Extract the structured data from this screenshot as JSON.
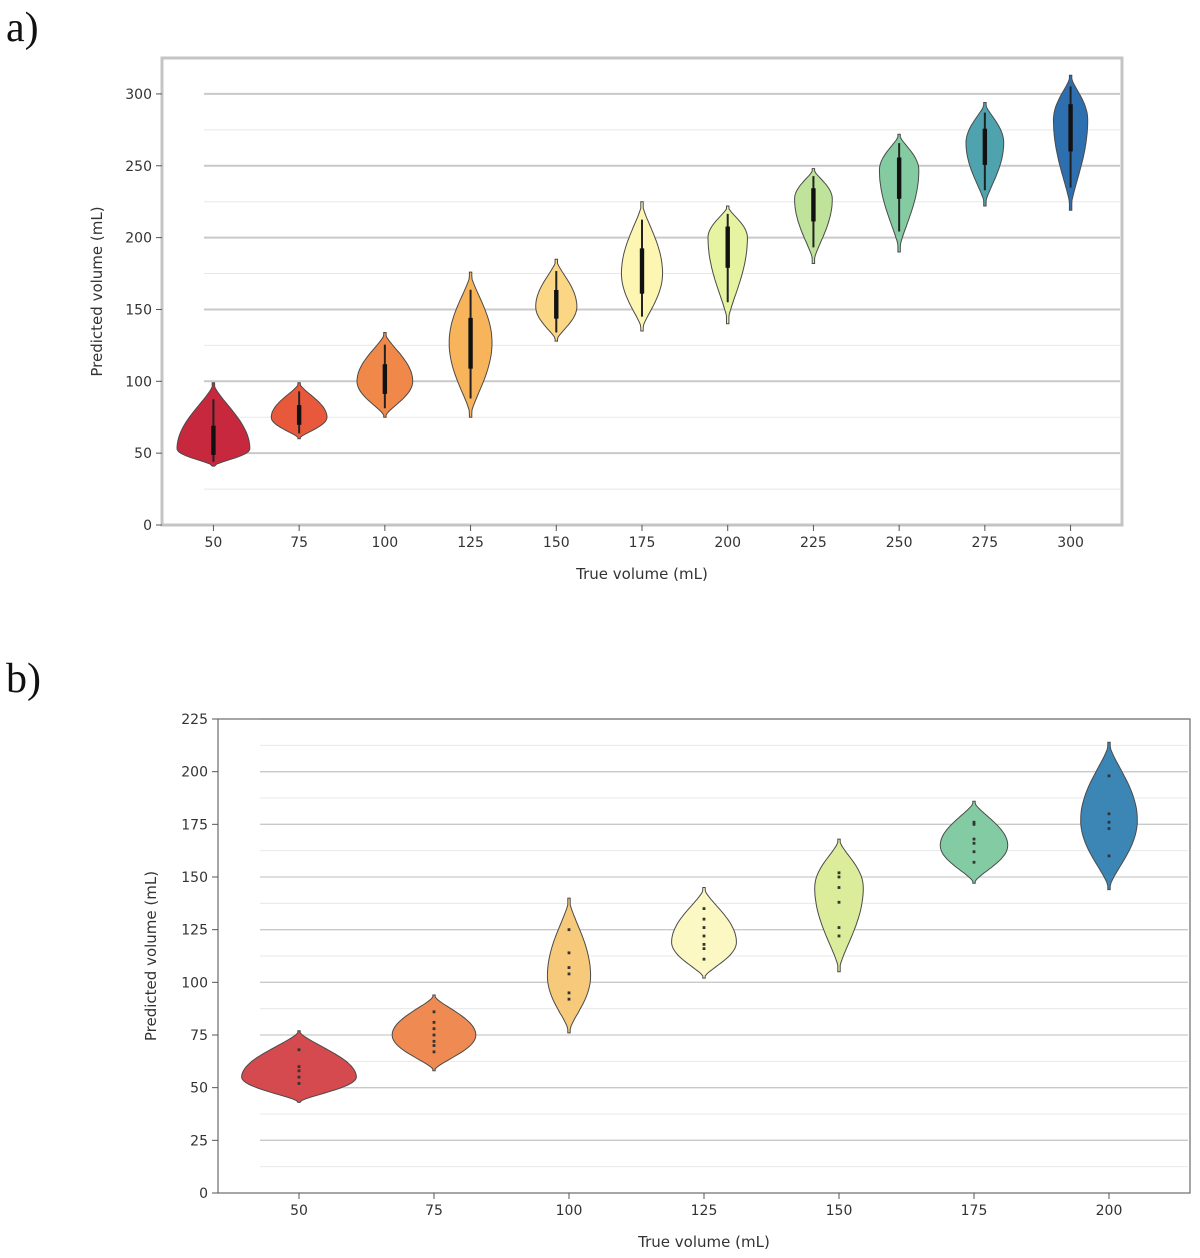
{
  "panels": {
    "a_label": "a)",
    "b_label": "b)"
  },
  "chart_data": [
    {
      "type": "violin",
      "panel": "a)",
      "xlabel": "True volume (mL)",
      "ylabel": "Predicted volume (mL)",
      "ylim": [
        0,
        325
      ],
      "yticks": [
        0,
        50,
        100,
        150,
        200,
        250,
        300
      ],
      "grid": "horizontal",
      "categories": [
        50,
        75,
        100,
        125,
        150,
        175,
        200,
        225,
        250,
        275,
        300
      ],
      "colors": [
        "#c8283e",
        "#e8593b",
        "#f0884a",
        "#f8b45a",
        "#fad685",
        "#fdf6b3",
        "#e6f3a0",
        "#bfe39a",
        "#84cba2",
        "#4fa3ae",
        "#2e6fb0"
      ],
      "violins": [
        {
          "x": 50,
          "min": 41,
          "max": 99,
          "center": 53,
          "width": 0.85
        },
        {
          "x": 75,
          "min": 60,
          "max": 99,
          "center": 75,
          "width": 0.65
        },
        {
          "x": 100,
          "min": 75,
          "max": 134,
          "center": 100,
          "width": 0.65
        },
        {
          "x": 125,
          "min": 75,
          "max": 176,
          "center": 127,
          "width": 0.5
        },
        {
          "x": 150,
          "min": 128,
          "max": 185,
          "center": 152,
          "width": 0.48
        },
        {
          "x": 175,
          "min": 135,
          "max": 225,
          "center": 175,
          "width": 0.48
        },
        {
          "x": 200,
          "min": 140,
          "max": 222,
          "center": 200,
          "width": 0.46
        },
        {
          "x": 225,
          "min": 182,
          "max": 248,
          "center": 227,
          "width": 0.44
        },
        {
          "x": 250,
          "min": 190,
          "max": 272,
          "center": 247,
          "width": 0.46
        },
        {
          "x": 275,
          "min": 222,
          "max": 294,
          "center": 266,
          "width": 0.44
        },
        {
          "x": 300,
          "min": 219,
          "max": 313,
          "center": 282,
          "width": 0.4
        }
      ]
    },
    {
      "type": "violin",
      "panel": "b)",
      "xlabel": "True volume (mL)",
      "ylabel": "Predicted volume (mL)",
      "ylim": [
        0,
        225
      ],
      "yticks": [
        0,
        25,
        50,
        75,
        100,
        125,
        150,
        175,
        200,
        225
      ],
      "grid": "horizontal",
      "categories": [
        50,
        75,
        100,
        125,
        150,
        175,
        200
      ],
      "colors": [
        "#d44a4e",
        "#ef8a52",
        "#f7c97a",
        "#fbf8c4",
        "#dbed9b",
        "#82cba3",
        "#3b86b5"
      ],
      "violins": [
        {
          "x": 50,
          "min": 43,
          "max": 77,
          "center": 55,
          "width": 0.85,
          "points": [
            52,
            55,
            58,
            60,
            68
          ]
        },
        {
          "x": 75,
          "min": 58,
          "max": 94,
          "center": 75,
          "width": 0.62,
          "points": [
            67,
            70,
            72,
            75,
            78,
            81,
            86
          ]
        },
        {
          "x": 100,
          "min": 76,
          "max": 140,
          "center": 103,
          "width": 0.32,
          "points": [
            92,
            95,
            104,
            107,
            114,
            125
          ]
        },
        {
          "x": 125,
          "min": 102,
          "max": 145,
          "center": 119,
          "width": 0.48,
          "points": [
            111,
            116,
            118,
            122,
            126,
            130,
            135
          ]
        },
        {
          "x": 150,
          "min": 105,
          "max": 168,
          "center": 145,
          "width": 0.36,
          "points": [
            122,
            126,
            138,
            145,
            150,
            152
          ]
        },
        {
          "x": 175,
          "min": 147,
          "max": 186,
          "center": 165,
          "width": 0.5,
          "points": [
            157,
            162,
            166,
            168,
            175,
            176
          ]
        },
        {
          "x": 200,
          "min": 144,
          "max": 214,
          "center": 177,
          "width": 0.42,
          "points": [
            160,
            173,
            176,
            180,
            198
          ]
        }
      ]
    }
  ]
}
